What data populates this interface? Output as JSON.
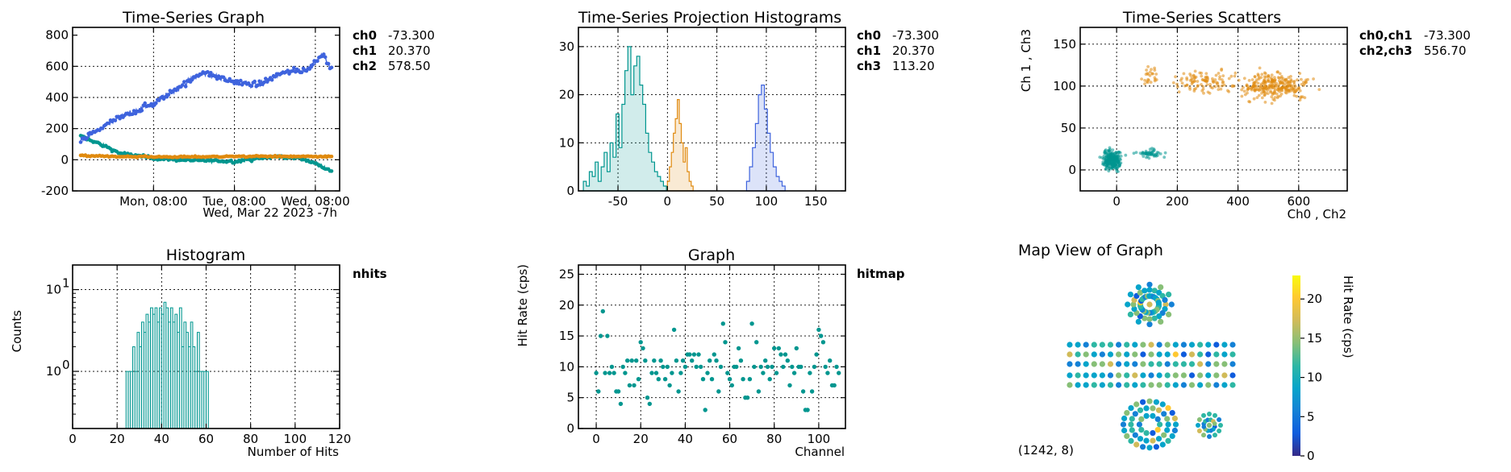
{
  "chart_data": [
    {
      "type": "line",
      "title": "Time-Series Graph",
      "xlabel_line2": "Wed, Mar 22 2023 -7h",
      "x_ticks": [
        "Mon, 08:00",
        "Tue, 08:00",
        "Wed, 08:00"
      ],
      "y_ticks": [
        "800",
        "600",
        "400",
        "200",
        "0",
        "-200"
      ],
      "xlim": [
        0,
        3.3
      ],
      "ylim": [
        -200,
        850
      ],
      "legend": [
        {
          "name": "ch0",
          "value": "-73.300",
          "color": "#00968f"
        },
        {
          "name": "ch1",
          "value": "20.370",
          "color": "#e08a0f"
        },
        {
          "name": "ch2",
          "value": "578.50",
          "color": "#3e63dd"
        }
      ],
      "series": [
        {
          "name": "ch0",
          "color": "#00968f",
          "x": [
            0.1,
            0.3,
            0.6,
            1.0,
            1.5,
            2.0,
            2.5,
            2.8,
            3.0,
            3.2
          ],
          "values": [
            150,
            110,
            40,
            10,
            -5,
            -10,
            20,
            10,
            -20,
            -70
          ]
        },
        {
          "name": "ch1",
          "color": "#e08a0f",
          "x": [
            0.1,
            0.6,
            1.2,
            1.8,
            2.4,
            3.0,
            3.2
          ],
          "values": [
            25,
            20,
            18,
            20,
            22,
            20,
            20
          ]
        },
        {
          "name": "ch2",
          "color": "#3e63dd",
          "x": [
            0.1,
            0.4,
            0.7,
            1.0,
            1.3,
            1.6,
            2.0,
            2.3,
            2.6,
            2.9,
            3.1,
            3.2
          ],
          "values": [
            120,
            220,
            300,
            360,
            460,
            560,
            500,
            480,
            560,
            580,
            680,
            580
          ]
        }
      ]
    },
    {
      "type": "bar",
      "title": "Time-Series Projection Histograms",
      "x_ticks": [
        "-50",
        "0",
        "50",
        "100",
        "150"
      ],
      "y_ticks": [
        "30",
        "20",
        "10",
        "0"
      ],
      "xlim": [
        -90,
        180
      ],
      "ylim": [
        0,
        34
      ],
      "legend": [
        {
          "name": "ch0",
          "value": "-73.300",
          "color": "#00968f"
        },
        {
          "name": "ch1",
          "value": "20.370",
          "color": "#e08a0f"
        },
        {
          "name": "ch3",
          "value": "113.20",
          "color": "#3e63dd"
        }
      ],
      "series": [
        {
          "name": "ch0",
          "color": "#00968f",
          "bin_start": -85,
          "bin_width": 3,
          "values": [
            2,
            1,
            4,
            3,
            6,
            2,
            5,
            8,
            4,
            10,
            7,
            16,
            9,
            18,
            25,
            30,
            20,
            26,
            28,
            22,
            18,
            12,
            8,
            6,
            4,
            3,
            2,
            1
          ]
        },
        {
          "name": "ch1",
          "color": "#e08a0f",
          "bin_start": 0,
          "bin_width": 2,
          "values": [
            2,
            5,
            8,
            12,
            15,
            19,
            14,
            10,
            6,
            9,
            4,
            2,
            1
          ]
        },
        {
          "name": "ch3",
          "color": "#3e63dd",
          "bin_start": 80,
          "bin_width": 3,
          "values": [
            2,
            5,
            9,
            14,
            20,
            22,
            17,
            12,
            8,
            5,
            3,
            2,
            1
          ]
        }
      ]
    },
    {
      "type": "scatter",
      "title": "Time-Series Scatters",
      "xlabel": "Ch0 , Ch2",
      "ylabel": "Ch 1 , Ch3",
      "x_ticks": [
        "0",
        "200",
        "400",
        "600"
      ],
      "y_ticks": [
        "150",
        "100",
        "50",
        "0"
      ],
      "xlim": [
        -120,
        760
      ],
      "ylim": [
        -25,
        170
      ],
      "legend": [
        {
          "name": "ch0,ch1",
          "value": "-73.300",
          "color": "#00968f"
        },
        {
          "name": "ch2,ch3",
          "value": "556.70",
          "color": "#e08a0f"
        }
      ],
      "series": [
        {
          "name": "ch0,ch1",
          "color": "#00968f",
          "clusters": [
            {
              "cx": -15,
              "cy": 12,
              "sx": 22,
              "sy": 8,
              "n": 260
            },
            {
              "cx": 110,
              "cy": 20,
              "sx": 30,
              "sy": 4,
              "n": 50
            }
          ]
        },
        {
          "name": "ch2,ch3",
          "color": "#e08a0f",
          "clusters": [
            {
              "cx": 520,
              "cy": 100,
              "sx": 75,
              "sy": 11,
              "n": 260
            },
            {
              "cx": 300,
              "cy": 105,
              "sx": 75,
              "sy": 10,
              "n": 100
            },
            {
              "cx": 110,
              "cy": 110,
              "sx": 25,
              "sy": 10,
              "n": 25
            }
          ]
        }
      ]
    },
    {
      "type": "bar",
      "title": "Histogram",
      "xlabel": "Number of Hits",
      "ylabel": "Counts",
      "x_ticks": [
        "0",
        "20",
        "40",
        "60",
        "80",
        "100",
        "120"
      ],
      "y_ticks_log": [
        {
          "base": "10",
          "exp": "1"
        },
        {
          "base": "10",
          "exp": "0"
        }
      ],
      "xlim": [
        0,
        120
      ],
      "ylim_log": [
        0.2,
        20
      ],
      "legend": [
        {
          "name": "nhits",
          "color": "#00968f"
        }
      ],
      "series": [
        {
          "name": "nhits",
          "color": "#00968f",
          "bin_start": 24,
          "bin_width": 1,
          "values": [
            1,
            1,
            1,
            2,
            1,
            3,
            2,
            4,
            3,
            5,
            4,
            6,
            5,
            6,
            4,
            6,
            5,
            7,
            6,
            4,
            6,
            4,
            5,
            3,
            6,
            2,
            4,
            3,
            2,
            4,
            2,
            1,
            3,
            1,
            1,
            1,
            1
          ]
        }
      ]
    },
    {
      "type": "scatter",
      "title": "Graph",
      "xlabel": "Channel",
      "ylabel": "Hit Rate (cps)",
      "x_ticks": [
        "0",
        "20",
        "40",
        "60",
        "80",
        "100"
      ],
      "y_ticks": [
        "25",
        "20",
        "15",
        "10",
        "5",
        "0"
      ],
      "xlim": [
        -8,
        112
      ],
      "ylim": [
        0,
        26.5
      ],
      "legend": [
        {
          "name": "hitmap",
          "color": "#00968f"
        }
      ],
      "series": [
        {
          "name": "hitmap",
          "color": "#00968f",
          "x_start": 0,
          "values": [
            9,
            6,
            15,
            19,
            9,
            15,
            9,
            10,
            9,
            6,
            6,
            4,
            10,
            9,
            11,
            7,
            11,
            7,
            11,
            8,
            14,
            13,
            11,
            5,
            4,
            9,
            11,
            9,
            8,
            11,
            10,
            8,
            10,
            7,
            9,
            16,
            11,
            6,
            9,
            11,
            10,
            12,
            12,
            11,
            12,
            10,
            12,
            10,
            8,
            3,
            9,
            11,
            8,
            12,
            11,
            6,
            10,
            17,
            14,
            9,
            8,
            7,
            10,
            10,
            13,
            11,
            8,
            5,
            5,
            8,
            17,
            10,
            14,
            6,
            10,
            9,
            11,
            10,
            8,
            10,
            13,
            9,
            13,
            12,
            10,
            12,
            11,
            7,
            10,
            9,
            13,
            10,
            10,
            6,
            3,
            3,
            9,
            6,
            10,
            12,
            16,
            15,
            14,
            10,
            9,
            11,
            7,
            7,
            10,
            9
          ]
        }
      ]
    },
    {
      "type": "heatmap",
      "title": "Map View of Graph",
      "cursor_readout": "(1242, 8)",
      "colorbar_label": "Hit Rate (cps)",
      "colorbar_ticks": [
        "20",
        "15",
        "10",
        "5",
        "0"
      ],
      "colorbar_range": [
        0,
        23
      ],
      "colormap": [
        "#352a87",
        "#0f5cdd",
        "#1481d6",
        "#06a4ca",
        "#2eb7a4",
        "#87bf77",
        "#d1bb59",
        "#fec832",
        "#f9fb0e"
      ]
    }
  ]
}
